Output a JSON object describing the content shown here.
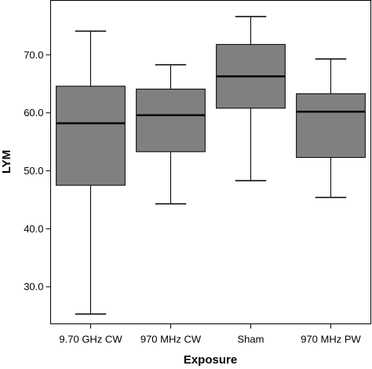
{
  "chart_data": {
    "type": "box",
    "xlabel": "Exposure",
    "ylabel": "LYM",
    "ylim": [
      23.6,
      79.4
    ],
    "yticks": [
      {
        "value": 30.0,
        "label": "30.0"
      },
      {
        "value": 40.0,
        "label": "40.0"
      },
      {
        "value": 50.0,
        "label": "50.0"
      },
      {
        "value": 60.0,
        "label": "60.0"
      },
      {
        "value": 70.0,
        "label": "70.0"
      }
    ],
    "grid": false,
    "box_color": "#808080",
    "categories": [
      "9.70 GHz CW",
      "970 MHz CW",
      "Sham",
      "970 MHz PW"
    ],
    "boxes": [
      {
        "category": "9.70 GHz CW",
        "min": 25.3,
        "q1": 47.5,
        "median": 58.2,
        "q3": 64.6,
        "max": 74.1
      },
      {
        "category": "970 MHz CW",
        "min": 44.3,
        "q1": 53.3,
        "median": 59.6,
        "q3": 64.1,
        "max": 68.3
      },
      {
        "category": "Sham",
        "min": 48.3,
        "q1": 60.8,
        "median": 66.3,
        "q3": 71.8,
        "max": 76.6
      },
      {
        "category": "970 MHz PW",
        "min": 45.4,
        "q1": 52.3,
        "median": 60.2,
        "q3": 63.3,
        "max": 69.3
      }
    ]
  }
}
